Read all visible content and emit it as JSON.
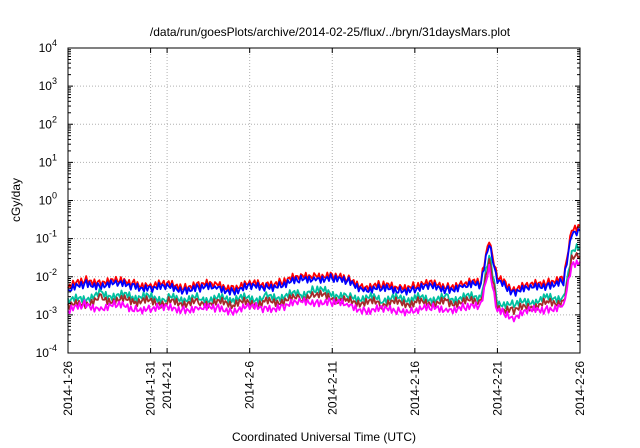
{
  "chart_data": {
    "type": "line",
    "title": "/data/run/goesPlots/archive/2014-02-25/flux/../bryn/31daysMars.plot",
    "xlabel": "Coordinated Universal Time (UTC)",
    "ylabel": "cGy/day",
    "yscale": "log",
    "ylim": [
      0.0001,
      10000
    ],
    "xlim": [
      "2014-01-26",
      "2014-02-26"
    ],
    "y_ticks": [
      {
        "value": 0.0001,
        "base": "10",
        "exp": "-4"
      },
      {
        "value": 0.001,
        "base": "10",
        "exp": "-3"
      },
      {
        "value": 0.01,
        "base": "10",
        "exp": "-2"
      },
      {
        "value": 0.1,
        "base": "10",
        "exp": "-1"
      },
      {
        "value": 1,
        "base": "10",
        "exp": "0"
      },
      {
        "value": 10,
        "base": "10",
        "exp": "1"
      },
      {
        "value": 100,
        "base": "10",
        "exp": "2"
      },
      {
        "value": 1000,
        "base": "10",
        "exp": "3"
      },
      {
        "value": 10000,
        "base": "10",
        "exp": "4"
      }
    ],
    "x_ticks": [
      {
        "date": "2014-01-26",
        "label": "2014-1-26"
      },
      {
        "date": "2014-01-31",
        "label": "2014-1-31"
      },
      {
        "date": "2014-02-01",
        "label": "2014-2-1"
      },
      {
        "date": "2014-02-06",
        "label": "2014-2-6"
      },
      {
        "date": "2014-02-11",
        "label": "2014-2-11"
      },
      {
        "date": "2014-02-16",
        "label": "2014-2-16"
      },
      {
        "date": "2014-02-21",
        "label": "2014-2-21"
      },
      {
        "date": "2014-02-26",
        "label": "2014-2-26"
      }
    ],
    "grid": true,
    "series": [
      {
        "color": "#ff0000",
        "x": [
          "2014-01-26",
          "2014-01-27",
          "2014-01-28",
          "2014-01-29",
          "2014-01-30",
          "2014-01-31",
          "2014-02-01",
          "2014-02-02",
          "2014-02-03",
          "2014-02-04",
          "2014-02-05",
          "2014-02-06",
          "2014-02-07",
          "2014-02-08",
          "2014-02-09",
          "2014-02-10",
          "2014-02-11",
          "2014-02-12",
          "2014-02-13",
          "2014-02-14",
          "2014-02-15",
          "2014-02-16",
          "2014-02-17",
          "2014-02-18",
          "2014-02-19",
          "2014-02-20",
          "2014-02-20T12:00",
          "2014-02-21",
          "2014-02-21T12:00",
          "2014-02-22",
          "2014-02-23",
          "2014-02-24",
          "2014-02-25",
          "2014-02-25T12:00",
          "2014-02-26"
        ],
        "values": [
          0.005,
          0.008,
          0.008,
          0.007,
          0.007,
          0.006,
          0.006,
          0.006,
          0.006,
          0.006,
          0.0055,
          0.006,
          0.0065,
          0.008,
          0.009,
          0.012,
          0.01,
          0.008,
          0.006,
          0.0055,
          0.0055,
          0.006,
          0.006,
          0.006,
          0.0065,
          0.007,
          0.11,
          0.009,
          0.006,
          0.005,
          0.0055,
          0.008,
          0.009,
          0.15,
          0.22
        ]
      },
      {
        "color": "#0000ff",
        "x": [
          "2014-01-26",
          "2014-01-27",
          "2014-01-28",
          "2014-01-29",
          "2014-01-30",
          "2014-01-31",
          "2014-02-01",
          "2014-02-02",
          "2014-02-03",
          "2014-02-04",
          "2014-02-05",
          "2014-02-06",
          "2014-02-07",
          "2014-02-08",
          "2014-02-09",
          "2014-02-10",
          "2014-02-11",
          "2014-02-12",
          "2014-02-13",
          "2014-02-14",
          "2014-02-15",
          "2014-02-16",
          "2014-02-17",
          "2014-02-18",
          "2014-02-19",
          "2014-02-20",
          "2014-02-20T12:00",
          "2014-02-21",
          "2014-02-21T12:00",
          "2014-02-22",
          "2014-02-23",
          "2014-02-24",
          "2014-02-25",
          "2014-02-25T12:00",
          "2014-02-26"
        ],
        "values": [
          0.004,
          0.0065,
          0.0065,
          0.006,
          0.006,
          0.005,
          0.005,
          0.005,
          0.005,
          0.005,
          0.0045,
          0.005,
          0.0055,
          0.0065,
          0.0075,
          0.01,
          0.0085,
          0.007,
          0.005,
          0.0045,
          0.0045,
          0.005,
          0.005,
          0.005,
          0.0055,
          0.006,
          0.09,
          0.0075,
          0.005,
          0.0042,
          0.0046,
          0.0065,
          0.0075,
          0.12,
          0.16
        ]
      },
      {
        "color": "#00c0a0",
        "x": [
          "2014-01-26",
          "2014-01-28",
          "2014-01-30",
          "2014-02-01",
          "2014-02-03",
          "2014-02-05",
          "2014-02-07",
          "2014-02-09",
          "2014-02-10",
          "2014-02-12",
          "2014-02-14",
          "2014-02-16",
          "2014-02-18",
          "2014-02-20",
          "2014-02-20T12:00",
          "2014-02-21",
          "2014-02-22",
          "2014-02-24",
          "2014-02-25",
          "2014-02-25T12:00",
          "2014-02-26"
        ],
        "values": [
          0.0022,
          0.0035,
          0.003,
          0.0027,
          0.0027,
          0.0026,
          0.0028,
          0.0035,
          0.0045,
          0.003,
          0.0026,
          0.0027,
          0.0027,
          0.003,
          0.035,
          0.0022,
          0.0018,
          0.0028,
          0.003,
          0.04,
          0.06
        ]
      },
      {
        "color": "#a52a2a",
        "x": [
          "2014-01-26",
          "2014-01-28",
          "2014-01-30",
          "2014-02-01",
          "2014-02-03",
          "2014-02-05",
          "2014-02-07",
          "2014-02-09",
          "2014-02-10",
          "2014-02-12",
          "2014-02-14",
          "2014-02-16",
          "2014-02-18",
          "2014-02-20",
          "2014-02-20T12:00",
          "2014-02-21",
          "2014-02-22",
          "2014-02-24",
          "2014-02-25",
          "2014-02-25T12:00",
          "2014-02-26"
        ],
        "values": [
          0.0016,
          0.0026,
          0.0023,
          0.0021,
          0.0021,
          0.002,
          0.0021,
          0.0027,
          0.0033,
          0.0023,
          0.002,
          0.0021,
          0.0021,
          0.0023,
          0.025,
          0.0016,
          0.0013,
          0.0021,
          0.0023,
          0.028,
          0.035
        ]
      },
      {
        "color": "#ff00ff",
        "x": [
          "2014-01-26",
          "2014-01-27",
          "2014-01-28",
          "2014-01-29",
          "2014-01-30",
          "2014-01-31",
          "2014-02-01",
          "2014-02-02",
          "2014-02-03",
          "2014-02-04",
          "2014-02-05",
          "2014-02-06",
          "2014-02-07",
          "2014-02-08",
          "2014-02-09",
          "2014-02-10",
          "2014-02-11",
          "2014-02-12",
          "2014-02-13",
          "2014-02-14",
          "2014-02-15",
          "2014-02-16",
          "2014-02-17",
          "2014-02-18",
          "2014-02-19",
          "2014-02-20",
          "2014-02-20T12:00",
          "2014-02-21",
          "2014-02-21T12:00",
          "2014-02-22",
          "2014-02-23",
          "2014-02-24",
          "2014-02-25",
          "2014-02-25T12:00",
          "2014-02-26"
        ],
        "values": [
          0.0012,
          0.0018,
          0.0016,
          0.0017,
          0.0015,
          0.0015,
          0.0014,
          0.0015,
          0.0014,
          0.0015,
          0.0014,
          0.0015,
          0.0015,
          0.0017,
          0.002,
          0.0024,
          0.0021,
          0.0017,
          0.0014,
          0.0013,
          0.0013,
          0.0014,
          0.0014,
          0.0015,
          0.0015,
          0.0016,
          0.02,
          0.0012,
          0.001,
          0.0009,
          0.0012,
          0.0015,
          0.0017,
          0.018,
          0.025
        ]
      }
    ]
  }
}
